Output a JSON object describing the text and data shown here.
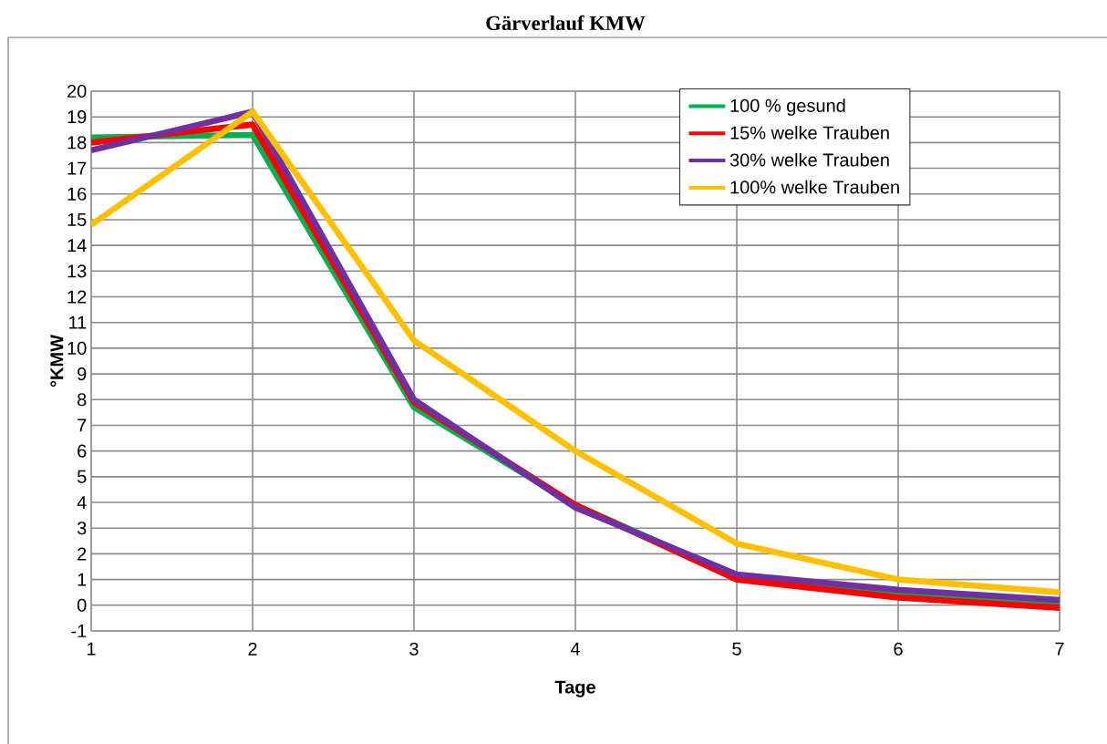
{
  "chart_data": {
    "type": "line",
    "title": "Gärverlauf KMW",
    "xlabel": "Tage",
    "ylabel": "°KMW",
    "x": [
      1,
      2,
      3,
      4,
      5,
      6,
      7
    ],
    "series": [
      {
        "name": "100 % gesund",
        "color": "#00b050",
        "values": [
          18.2,
          18.3,
          7.7,
          3.9,
          1.1,
          0.4,
          0.1
        ]
      },
      {
        "name": "15% welke Trauben",
        "color": "#ff0000",
        "values": [
          18.0,
          18.7,
          7.9,
          3.9,
          1.0,
          0.3,
          -0.1
        ]
      },
      {
        "name": "30% welke Trauben",
        "color": "#7030a0",
        "values": [
          17.7,
          19.2,
          8.0,
          3.8,
          1.2,
          0.6,
          0.2
        ]
      },
      {
        "name": "100% welke Trauben",
        "color": "#ffc000",
        "values": [
          14.8,
          19.2,
          10.3,
          6.0,
          2.4,
          1.0,
          0.5
        ]
      }
    ],
    "xlim": [
      1,
      7
    ],
    "xticks": [
      1,
      2,
      3,
      4,
      5,
      6,
      7
    ],
    "ylim": [
      -1,
      20
    ],
    "yticks": [
      -1,
      0,
      1,
      2,
      3,
      4,
      5,
      6,
      7,
      8,
      9,
      10,
      11,
      12,
      13,
      14,
      15,
      16,
      17,
      18,
      19,
      20
    ],
    "grid": true,
    "legend": "top right",
    "marker": "none",
    "line_style": "solid"
  }
}
